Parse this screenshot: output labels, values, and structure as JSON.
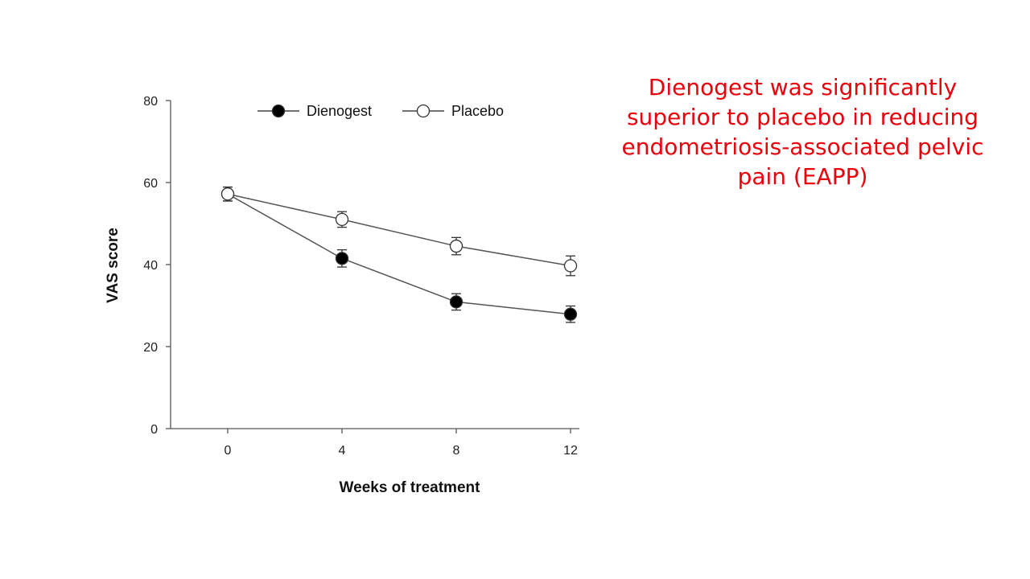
{
  "slide": {
    "caption": "Dienogest was significantly superior to placebo in reducing endometriosis-associated pelvic pain (EAPP)"
  },
  "chart_data": {
    "type": "line",
    "title": "",
    "xlabel": "Weeks of treatment",
    "ylabel": "VAS score",
    "x": [
      0,
      4,
      8,
      12
    ],
    "x_tick_labels": [
      "0",
      "4",
      "8",
      "12"
    ],
    "xlim": [
      -2,
      12
    ],
    "ylim": [
      0,
      80
    ],
    "y_ticks": [
      0,
      20,
      40,
      60,
      80
    ],
    "grid": false,
    "legend_position": "top",
    "series": [
      {
        "name": "Dienogest",
        "marker": "filled-circle",
        "color": "#000000",
        "values": [
          57.2,
          41.5,
          30.9,
          27.9
        ],
        "error": [
          1.7,
          2.1,
          2.0,
          2.0
        ]
      },
      {
        "name": "Placebo",
        "marker": "open-circle",
        "color": "#000000",
        "values": [
          57.2,
          51.0,
          44.5,
          39.7
        ],
        "error": [
          1.7,
          1.9,
          2.1,
          2.4
        ]
      }
    ]
  }
}
